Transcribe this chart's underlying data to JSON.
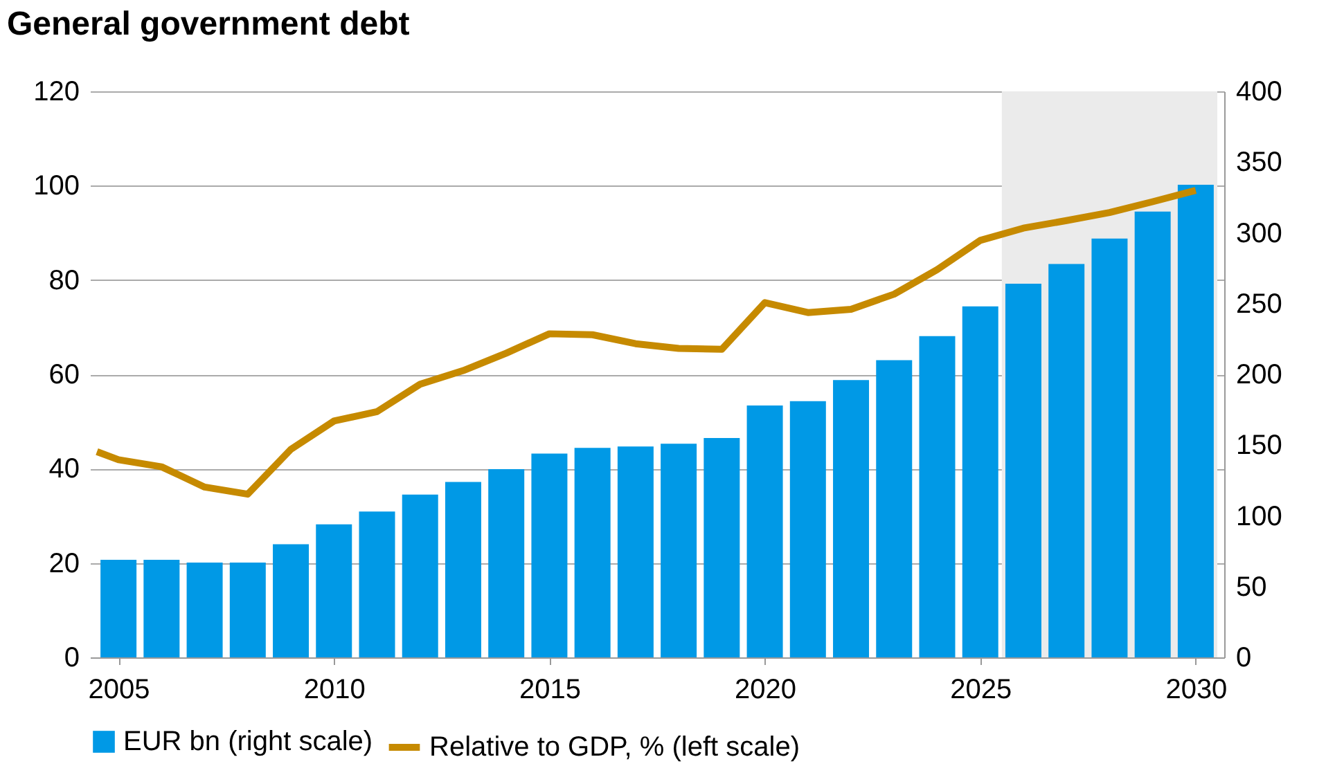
{
  "chart_data": {
    "type": "bar",
    "title": "General government debt",
    "x": [
      2005,
      2006,
      2007,
      2008,
      2009,
      2010,
      2011,
      2012,
      2013,
      2014,
      2015,
      2016,
      2017,
      2018,
      2019,
      2020,
      2021,
      2022,
      2023,
      2024,
      2025,
      2026,
      2027,
      2028,
      2029,
      2030
    ],
    "xlim": [
      2004.5,
      2030.5
    ],
    "xticks": [
      2005,
      2010,
      2015,
      2020,
      2025,
      2030
    ],
    "ylim": [
      0,
      120
    ],
    "yticks": [
      0,
      20,
      40,
      60,
      80,
      100,
      120
    ],
    "y2lim": [
      0,
      400
    ],
    "y2ticks": [
      0,
      50,
      100,
      150,
      200,
      250,
      300,
      350,
      400
    ],
    "series": [
      {
        "name": "EUR bn (right scale)",
        "axis": "y2",
        "color": "#0099e6",
        "values": [
          69,
          69,
          67,
          67,
          80,
          94,
          103,
          115,
          124,
          133,
          144,
          148,
          149,
          151,
          155,
          178,
          181,
          196,
          210,
          227,
          248,
          264,
          278,
          296,
          315,
          334
        ]
      },
      {
        "name": "Relative to GDP, % (left scale)",
        "type": "line",
        "axis": "y",
        "color": "#c68a00",
        "x": [
          2004.5,
          2005,
          2006,
          2007,
          2008,
          2009,
          2010,
          2011,
          2012,
          2013,
          2014,
          2015,
          2016,
          2017,
          2018,
          2019,
          2020,
          2021,
          2022,
          2023,
          2024,
          2025,
          2026,
          2027,
          2028,
          2029,
          2030
        ],
        "values": [
          43.6,
          41.9,
          40.4,
          36.1,
          34.6,
          44.1,
          50.1,
          52.1,
          57.9,
          60.8,
          64.5,
          68.6,
          68.4,
          66.5,
          65.5,
          65.3,
          75.2,
          73.1,
          73.8,
          77.0,
          82.2,
          88.4,
          91.0,
          92.6,
          94.3,
          96.6,
          99.0
        ]
      }
    ],
    "bands": [
      {
        "axis": "x",
        "from": 2025.5,
        "to": 2030.5,
        "color": "#ebebeb"
      }
    ],
    "grid": "y",
    "legend": "bottom",
    "line_style": "solid",
    "marker": "none"
  }
}
